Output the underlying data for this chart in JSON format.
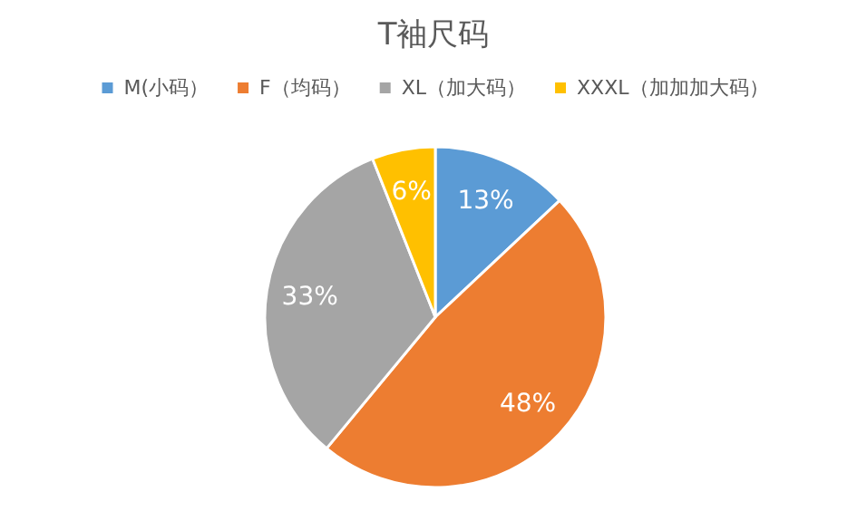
{
  "chart_data": {
    "type": "pie",
    "title": "T袖尺码",
    "categories": [
      "M(小码）",
      "F（均码）",
      "XL（加大码）",
      "XXXL（加加加大码）"
    ],
    "values": [
      13,
      48,
      33,
      6
    ],
    "value_labels": [
      "13%",
      "48%",
      "33%",
      "6%"
    ],
    "colors": [
      "#5b9bd5",
      "#ed7d31",
      "#a5a5a5",
      "#ffc000"
    ],
    "legend": "top"
  }
}
